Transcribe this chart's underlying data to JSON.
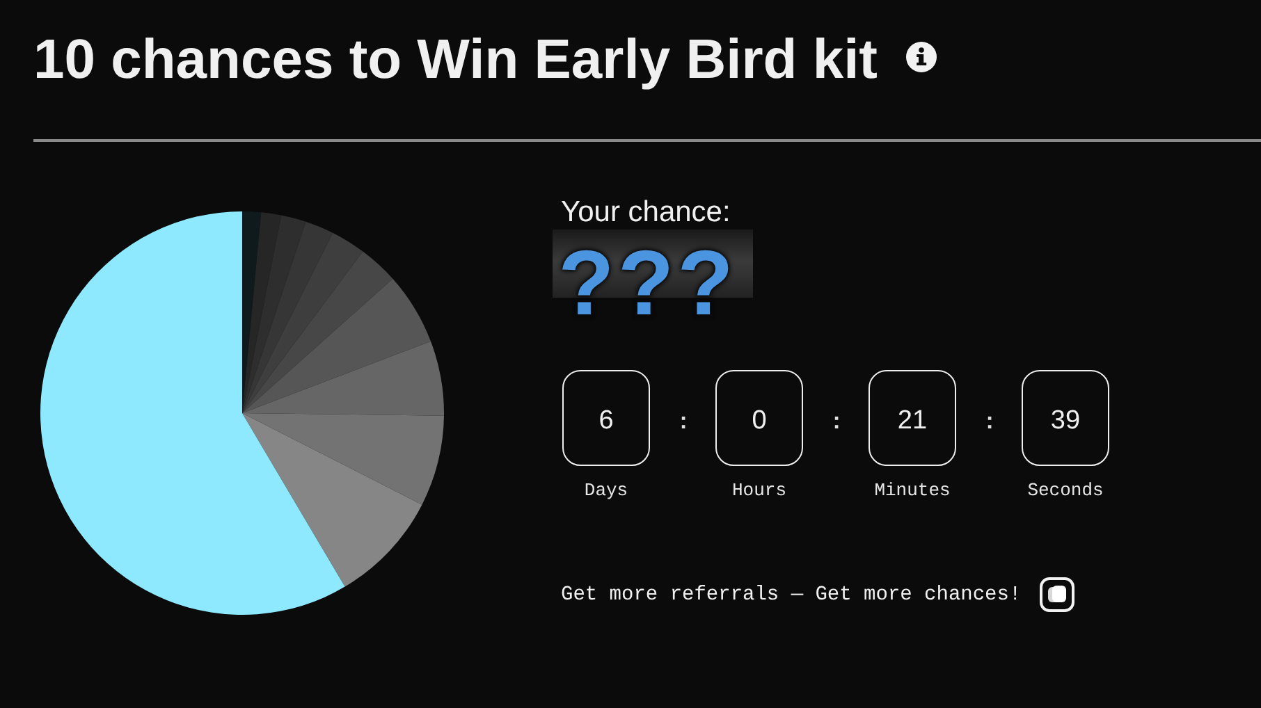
{
  "chart_data": [
    {
      "type": "pie",
      "title": "10 chances to Win Early Bird kit",
      "categories": [
        null,
        null,
        null,
        null,
        null,
        null,
        null,
        null,
        null,
        null,
        null
      ],
      "values": [
        1.5,
        1.6,
        2.0,
        2.3,
        2.8,
        3.2,
        5.8,
        6.0,
        7.3,
        9.0,
        58.5
      ],
      "colors": [
        "#0f1a1d",
        "#262626",
        "#2e2e2e",
        "#363636",
        "#3e3e3e",
        "#474747",
        "#565656",
        "#666666",
        "#737373",
        "#868686",
        "#8ee9ff"
      ]
    },
    {
      "type": "other",
      "title": "Your chance:",
      "subtitle": "???",
      "categories": [
        "Days",
        "Hours",
        "Minutes",
        "Seconds"
      ],
      "values": [
        6,
        0,
        21,
        39
      ],
      "data_labels": true,
      "annotations": [
        ":",
        ":",
        ":",
        "Get more referrals — Get more chances!"
      ]
    }
  ]
}
